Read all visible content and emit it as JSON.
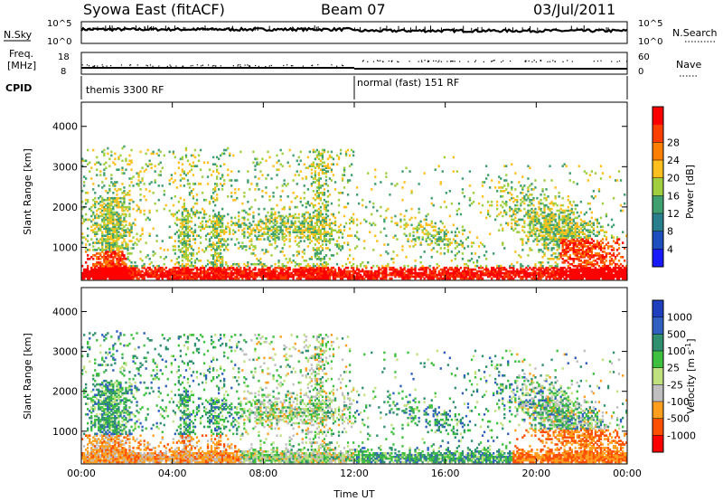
{
  "header": {
    "station": "Syowa East (fitACF)",
    "beam": "Beam 07",
    "date": "03/Jul/2011"
  },
  "top_panels": {
    "nsky_label": "N.Sky",
    "nsearch_label": "N.Search",
    "freq_label_line1": "Freq.",
    "freq_label_line2": "[MHz]",
    "nave_label": "Nave",
    "cpid_label": "CPID",
    "nsky_ticks": [
      "10^5",
      "10^0"
    ],
    "nsearch_ticks": [
      "10^5",
      "10^0"
    ],
    "freq_ticks": [
      "18",
      "8"
    ],
    "nave_ticks": [
      "60",
      "0"
    ],
    "cpid_segments": [
      {
        "label": "themis 3300 RF",
        "start_hour": 0
      },
      {
        "label": "normal (fast) 151 RF",
        "start_hour": 12
      }
    ]
  },
  "colors": {
    "power_scale": [
      "#1a1aff",
      "#1f4fbf",
      "#2a7f8f",
      "#3f9f6f",
      "#9fcf3f",
      "#ffbf1f",
      "#ff7f00",
      "#ff3f00",
      "#ff0000"
    ],
    "velocity_scale": [
      "#ff0000",
      "#ff4f00",
      "#ff9f1f",
      "#bfbfbf",
      "#bfe07f",
      "#3fbf3f",
      "#2f8f6f",
      "#2f5fbf",
      "#1f3fbf"
    ]
  },
  "chart_data": [
    {
      "type": "heatmap",
      "name": "power",
      "title": "",
      "xlabel": "Time UT",
      "ylabel": "Slant Range [km]",
      "xlim": [
        0,
        24
      ],
      "ylim": [
        180,
        4600
      ],
      "x_ticks": [
        "00:00",
        "04:00",
        "08:00",
        "12:00",
        "16:00",
        "20:00",
        "00:00"
      ],
      "x_tick_hours": [
        0,
        4,
        8,
        12,
        16,
        20,
        24
      ],
      "y_ticks": [
        1000,
        2000,
        3000,
        4000
      ],
      "colorbar_label": "Power [dB]",
      "colorbar_ticks": [
        "4",
        "8",
        "12",
        "16",
        "20",
        "24",
        "28"
      ],
      "colorbar_range": [
        0,
        30
      ]
    },
    {
      "type": "heatmap",
      "name": "velocity",
      "title": "",
      "xlabel": "Time UT",
      "ylabel": "Slant Range [km]",
      "xlim": [
        0,
        24
      ],
      "ylim": [
        180,
        4600
      ],
      "x_ticks": [
        "00:00",
        "04:00",
        "08:00",
        "12:00",
        "16:00",
        "20:00",
        "00:00"
      ],
      "x_tick_hours": [
        0,
        4,
        8,
        12,
        16,
        20,
        24
      ],
      "y_ticks": [
        1000,
        2000,
        3000,
        4000
      ],
      "colorbar_label": "Velocity [m s",
      "colorbar_label_sup": "-1",
      "colorbar_label_end": "]",
      "colorbar_ticks": [
        "1000",
        "500",
        "100",
        "25",
        "-25",
        "-100",
        "-500",
        "-1000"
      ]
    }
  ]
}
